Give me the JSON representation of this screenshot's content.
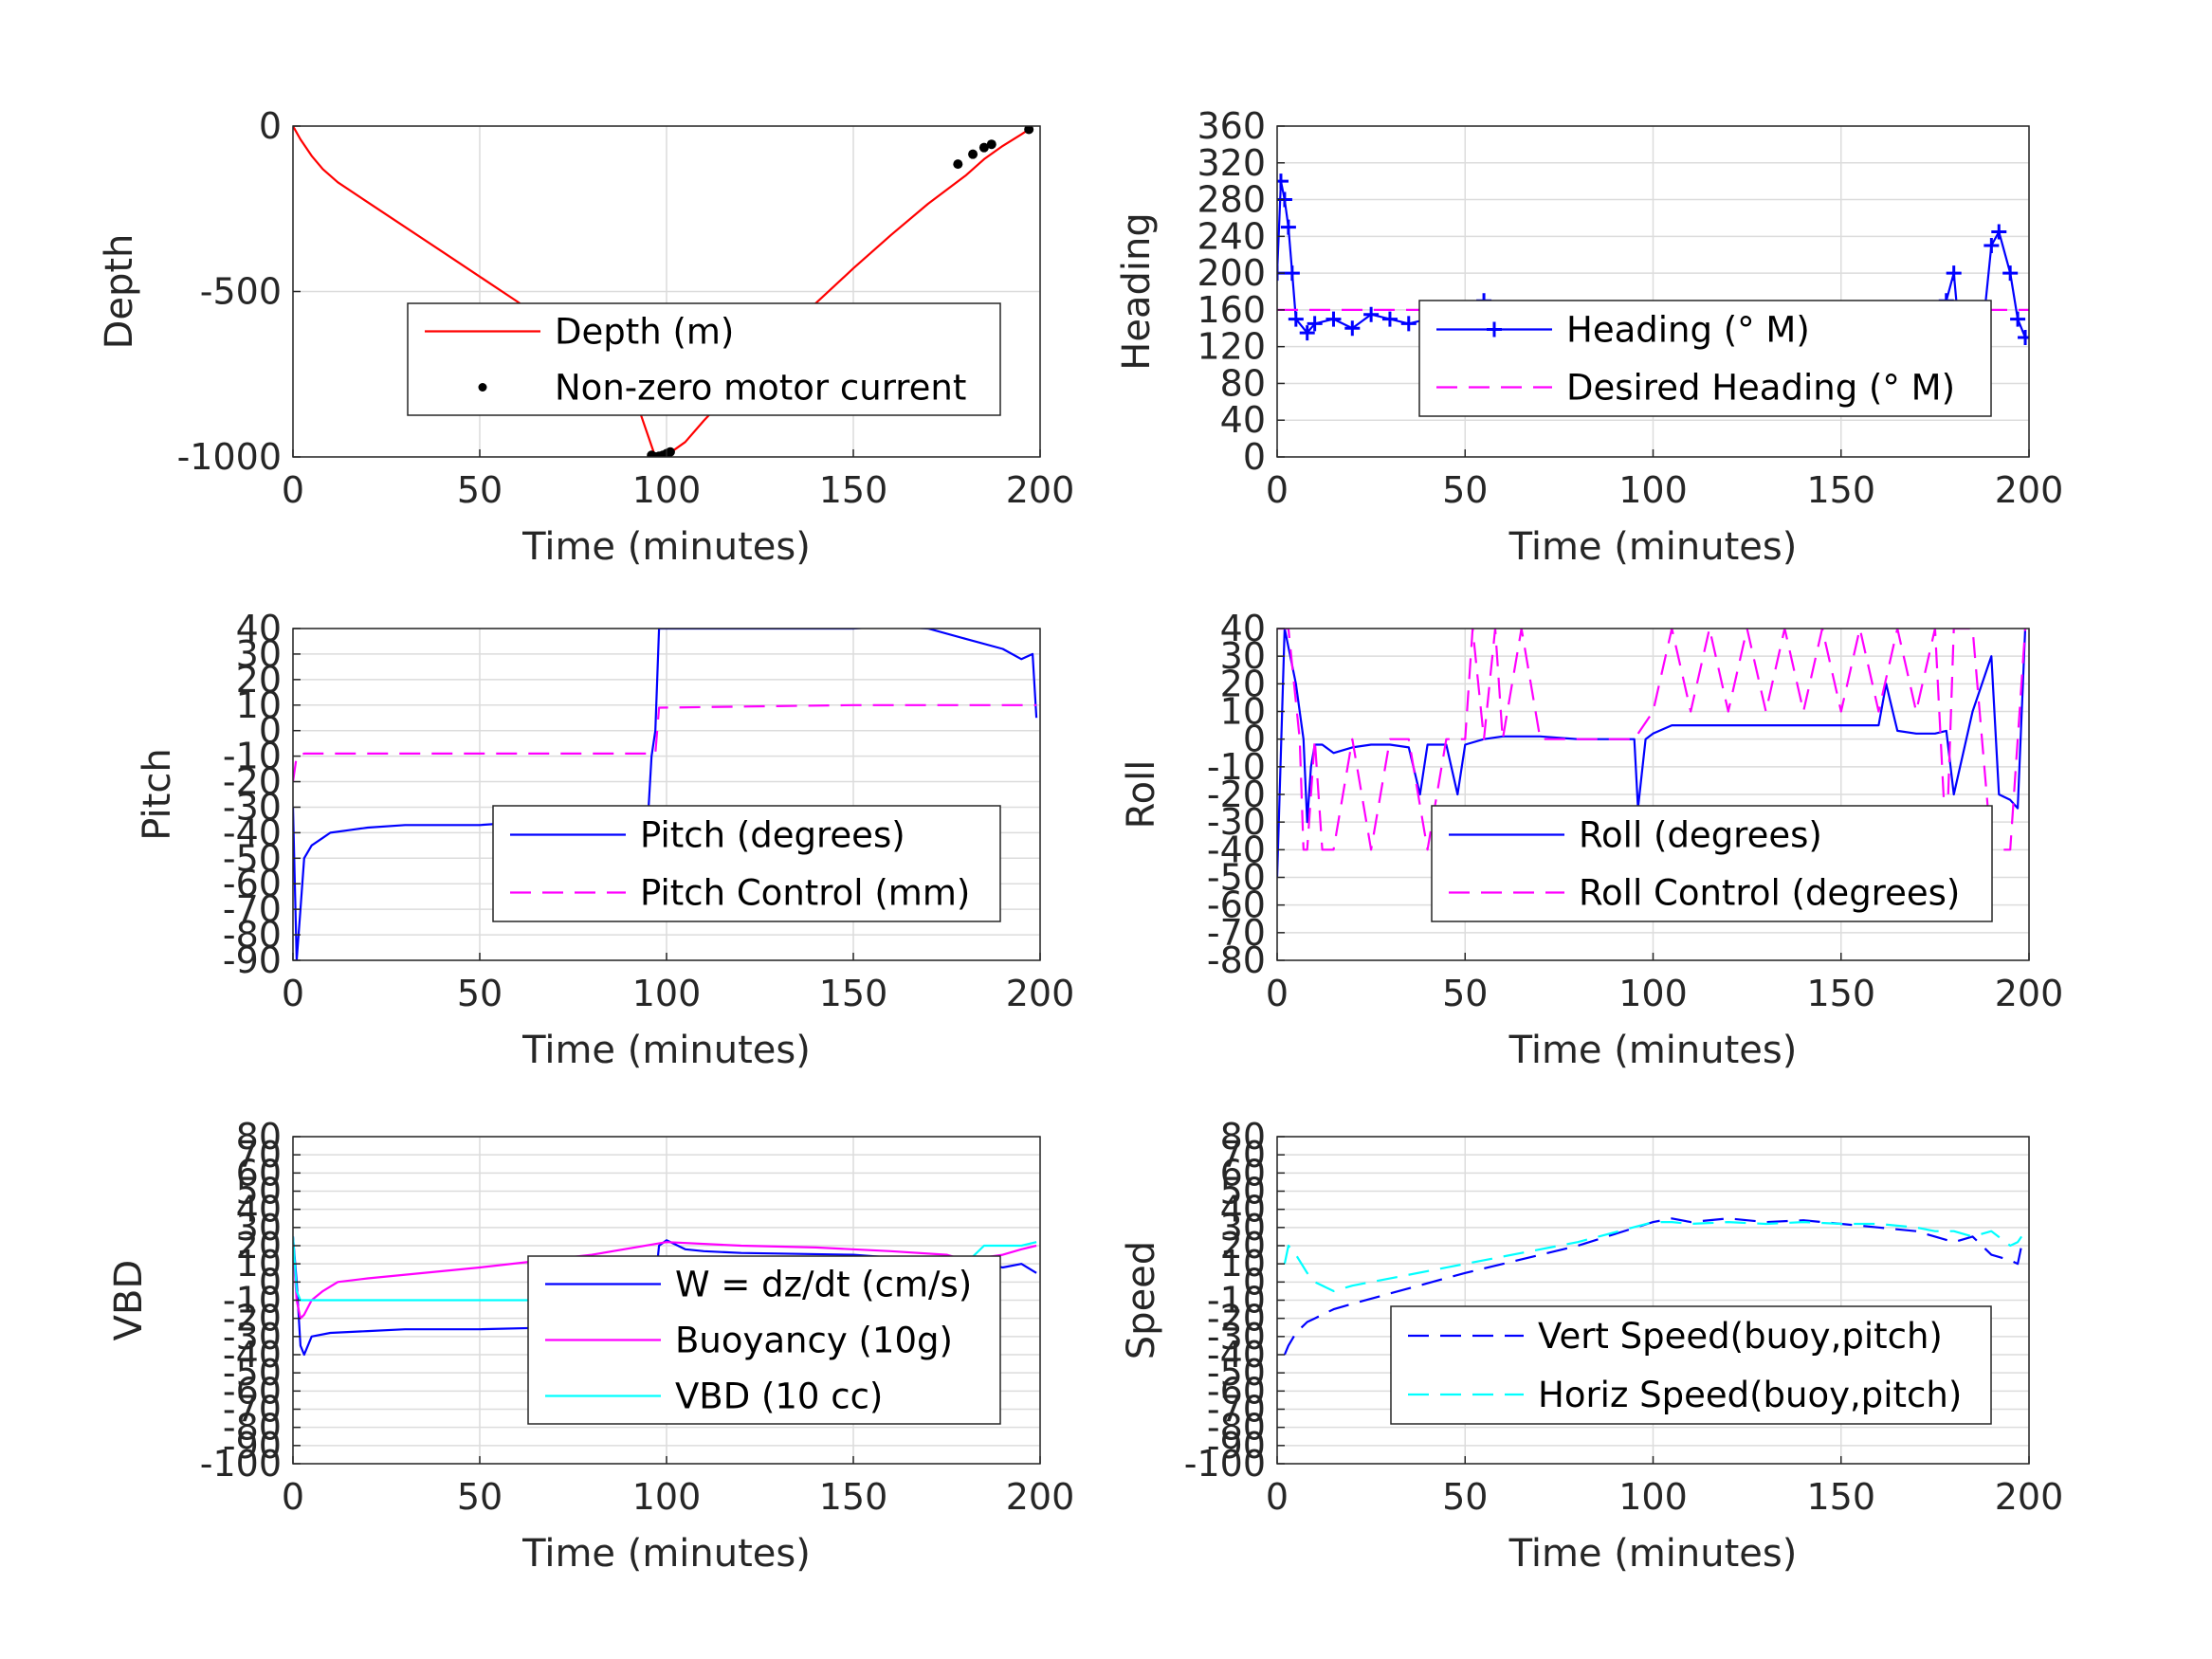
{
  "colors": {
    "red": "#ff0000",
    "blue": "#0000ff",
    "magenta": "#ff00ff",
    "cyan": "#00ffff",
    "black": "#000000"
  },
  "chart_data": [
    {
      "id": "depth",
      "type": "line",
      "xlabel": "Time (minutes)",
      "ylabel": "Depth",
      "xlim": [
        0,
        200
      ],
      "ylim": [
        -1000,
        0
      ],
      "xticks": [
        0,
        50,
        100,
        150,
        200
      ],
      "yticks": [
        -1000,
        -500,
        0
      ],
      "grid": true,
      "legend_position": "center-right",
      "series": [
        {
          "name": "Depth (m)",
          "style": "line",
          "color": "#ff0000",
          "x": [
            0,
            2,
            5,
            8,
            12,
            20,
            30,
            40,
            50,
            60,
            70,
            80,
            90,
            97,
            100,
            105,
            110,
            120,
            130,
            140,
            150,
            160,
            170,
            180,
            185,
            190,
            195,
            197
          ],
          "y": [
            0,
            -40,
            -90,
            -130,
            -170,
            -230,
            -305,
            -380,
            -455,
            -530,
            -610,
            -690,
            -770,
            -1000,
            -995,
            -955,
            -890,
            -770,
            -650,
            -535,
            -430,
            -330,
            -235,
            -150,
            -100,
            -60,
            -25,
            -10
          ]
        },
        {
          "name": "Non-zero motor current",
          "style": "dots",
          "color": "#000000",
          "x": [
            96,
            97,
            98,
            99,
            100,
            101,
            178,
            182,
            185,
            187,
            197
          ],
          "y": [
            -995,
            -1000,
            -998,
            -995,
            -990,
            -985,
            -115,
            -85,
            -65,
            -55,
            -10
          ]
        }
      ]
    },
    {
      "id": "heading",
      "type": "line",
      "xlabel": "Time (minutes)",
      "ylabel": "Heading",
      "xlim": [
        0,
        200
      ],
      "ylim": [
        0,
        360
      ],
      "xticks": [
        0,
        50,
        100,
        150,
        200
      ],
      "yticks": [
        0,
        40,
        80,
        120,
        160,
        200,
        240,
        280,
        320,
        360
      ],
      "grid": true,
      "legend_position": "center",
      "series": [
        {
          "name": "Heading (° M)",
          "style": "plus-line",
          "color": "#0000ff",
          "x": [
            0,
            1,
            2,
            3,
            4,
            5,
            8,
            10,
            15,
            20,
            25,
            30,
            35,
            40,
            45,
            50,
            55,
            60,
            65,
            70,
            75,
            80,
            85,
            90,
            95,
            100,
            105,
            110,
            115,
            120,
            125,
            130,
            135,
            140,
            145,
            150,
            155,
            160,
            165,
            170,
            175,
            178,
            180,
            182,
            185,
            188,
            190,
            192,
            195,
            197,
            199
          ],
          "y": [
            200,
            300,
            280,
            250,
            200,
            150,
            135,
            145,
            150,
            140,
            155,
            150,
            145,
            150,
            155,
            160,
            170,
            160,
            150,
            155,
            150,
            145,
            155,
            150,
            145,
            150,
            125,
            115,
            150,
            120,
            140,
            115,
            145,
            150,
            140,
            155,
            150,
            155,
            150,
            145,
            150,
            170,
            200,
            110,
            90,
            150,
            230,
            245,
            200,
            150,
            130
          ]
        },
        {
          "name": "Desired Heading (° M)",
          "style": "dashed",
          "color": "#ff00ff",
          "x": [
            0,
            200
          ],
          "y": [
            160,
            160
          ]
        }
      ]
    },
    {
      "id": "pitch",
      "type": "line",
      "xlabel": "Time (minutes)",
      "ylabel": "Pitch",
      "xlim": [
        0,
        200
      ],
      "ylim": [
        -90,
        40
      ],
      "xticks": [
        0,
        50,
        100,
        150,
        200
      ],
      "yticks": [
        -90,
        -80,
        -70,
        -60,
        -50,
        -40,
        -30,
        -20,
        -10,
        0,
        10,
        20,
        30,
        40
      ],
      "grid": true,
      "legend_position": "center-right",
      "series": [
        {
          "name": "Pitch (degrees)",
          "style": "line",
          "color": "#0000ff",
          "x": [
            0,
            1,
            2,
            3,
            5,
            8,
            10,
            15,
            20,
            30,
            40,
            50,
            60,
            70,
            80,
            90,
            95,
            96,
            97,
            98,
            99,
            100,
            150,
            160,
            170,
            180,
            190,
            195,
            198,
            199
          ],
          "y": [
            -30,
            -90,
            -70,
            -50,
            -45,
            -42,
            -40,
            -39,
            -38,
            -37,
            -37,
            -37,
            -36,
            -36,
            -35,
            -35,
            -35,
            -10,
            0,
            40,
            40,
            40,
            40,
            41,
            40,
            36,
            32,
            28,
            30,
            5
          ]
        },
        {
          "name": "Pitch Control (mm)",
          "style": "dashed",
          "color": "#ff00ff",
          "x": [
            0,
            1,
            3,
            50,
            95,
            97,
            98,
            150,
            199
          ],
          "y": [
            -20,
            -10,
            -9,
            -9,
            -9,
            -9,
            9,
            10,
            10
          ]
        }
      ]
    },
    {
      "id": "roll",
      "type": "line",
      "xlabel": "Time (minutes)",
      "ylabel": "Roll",
      "xlim": [
        0,
        200
      ],
      "ylim": [
        -80,
        40
      ],
      "xticks": [
        0,
        50,
        100,
        150,
        200
      ],
      "yticks": [
        -80,
        -70,
        -60,
        -50,
        -40,
        -30,
        -20,
        -10,
        0,
        10,
        20,
        30,
        40
      ],
      "grid": true,
      "legend_position": "center-right",
      "series": [
        {
          "name": "Roll (degrees)",
          "style": "line",
          "color": "#0000ff",
          "x": [
            0,
            2,
            5,
            7,
            8,
            9,
            10,
            12,
            15,
            20,
            25,
            30,
            35,
            38,
            40,
            45,
            48,
            50,
            55,
            60,
            70,
            80,
            90,
            95,
            96,
            98,
            100,
            105,
            110,
            120,
            130,
            140,
            150,
            160,
            162,
            165,
            170,
            175,
            178,
            180,
            185,
            190,
            192,
            195,
            197,
            199
          ],
          "y": [
            -50,
            40,
            20,
            0,
            -30,
            -10,
            -2,
            -2,
            -5,
            -3,
            -2,
            -2,
            -3,
            -20,
            -2,
            -2,
            -20,
            -2,
            0,
            1,
            1,
            0,
            0,
            0,
            -25,
            0,
            2,
            5,
            5,
            5,
            5,
            5,
            5,
            5,
            20,
            3,
            2,
            2,
            3,
            -20,
            10,
            30,
            -20,
            -22,
            -25,
            40
          ]
        },
        {
          "name": "Roll Control (degrees)",
          "style": "dashed",
          "color": "#ff00ff",
          "x": [
            0,
            3,
            6,
            7,
            8,
            10,
            12,
            15,
            20,
            25,
            30,
            35,
            40,
            45,
            50,
            52,
            55,
            58,
            60,
            65,
            70,
            75,
            80,
            85,
            90,
            95,
            100,
            105,
            110,
            115,
            120,
            125,
            130,
            135,
            140,
            145,
            150,
            155,
            160,
            165,
            170,
            175,
            178,
            180,
            185,
            190,
            195,
            199
          ],
          "y": [
            40,
            40,
            0,
            -40,
            -40,
            0,
            -40,
            -40,
            0,
            -40,
            0,
            0,
            -40,
            0,
            0,
            40,
            0,
            40,
            0,
            40,
            0,
            0,
            0,
            0,
            0,
            0,
            10,
            40,
            10,
            40,
            10,
            40,
            10,
            40,
            10,
            40,
            10,
            40,
            10,
            40,
            10,
            40,
            -40,
            40,
            40,
            -40,
            -40,
            40
          ]
        }
      ]
    },
    {
      "id": "vbd",
      "type": "line",
      "xlabel": "Time (minutes)",
      "ylabel": "VBD",
      "xlim": [
        0,
        200
      ],
      "ylim": [
        -100,
        80
      ],
      "xticks": [
        0,
        50,
        100,
        150,
        200
      ],
      "yticks": [
        -100,
        -90,
        -80,
        -70,
        -60,
        -50,
        -40,
        -30,
        -20,
        -10,
        0,
        10,
        20,
        30,
        40,
        50,
        60,
        70,
        80
      ],
      "grid": true,
      "legend_position": "center-right",
      "series": [
        {
          "name": "W = dz/dt (cm/s)",
          "style": "line",
          "color": "#0000ff",
          "x": [
            0,
            1,
            2,
            3,
            5,
            10,
            20,
            30,
            50,
            70,
            85,
            90,
            95,
            96,
            97,
            98,
            100,
            105,
            110,
            120,
            150,
            170,
            175,
            180,
            190,
            195,
            199
          ],
          "y": [
            25,
            0,
            -35,
            -40,
            -30,
            -28,
            -27,
            -26,
            -26,
            -25,
            -25,
            -30,
            -20,
            -25,
            0,
            20,
            23,
            18,
            17,
            16,
            15,
            12,
            10,
            12,
            8,
            10,
            5
          ]
        },
        {
          "name": "Buoyancy (10g)",
          "style": "line",
          "color": "#ff00ff",
          "x": [
            0,
            1,
            2,
            3,
            5,
            8,
            12,
            20,
            50,
            80,
            100,
            120,
            140,
            160,
            175,
            180,
            190,
            195,
            199
          ],
          "y": [
            20,
            -10,
            -20,
            -18,
            -10,
            -5,
            0,
            2,
            8,
            15,
            22,
            20,
            19,
            17,
            15,
            12,
            15,
            18,
            20
          ]
        },
        {
          "name": "VBD (10 cc)",
          "style": "line",
          "color": "#00ffff",
          "x": [
            0,
            1,
            2,
            3,
            5,
            50,
            96,
            97,
            100,
            150,
            180,
            185,
            190,
            195,
            199
          ],
          "y": [
            25,
            -5,
            -10,
            -10,
            -10,
            -10,
            -10,
            10,
            10,
            10,
            10,
            20,
            20,
            20,
            22
          ]
        }
      ]
    },
    {
      "id": "speed",
      "type": "line",
      "xlabel": "Time (minutes)",
      "ylabel": "Speed",
      "xlim": [
        0,
        200
      ],
      "ylim": [
        -100,
        80
      ],
      "xticks": [
        0,
        50,
        100,
        150,
        200
      ],
      "yticks": [
        -100,
        -90,
        -80,
        -70,
        -60,
        -50,
        -40,
        -30,
        -20,
        -10,
        0,
        10,
        20,
        30,
        40,
        50,
        60,
        70,
        80
      ],
      "grid": true,
      "legend_position": "lower-right",
      "series": [
        {
          "name": "Vert Speed(buoy,pitch)",
          "style": "dashed",
          "color": "#0000ff",
          "x": [
            2,
            3,
            5,
            8,
            10,
            15,
            20,
            50,
            80,
            100,
            105,
            110,
            120,
            130,
            140,
            150,
            160,
            170,
            175,
            180,
            185,
            190,
            195,
            197,
            198
          ],
          "y": [
            -40,
            -35,
            -28,
            -22,
            -20,
            -15,
            -12,
            5,
            20,
            33,
            35,
            33,
            35,
            33,
            34,
            32,
            30,
            28,
            25,
            22,
            25,
            15,
            12,
            10,
            20
          ]
        },
        {
          "name": "Horiz Speed(buoy,pitch)",
          "style": "dashed",
          "color": "#00ffff",
          "x": [
            2,
            3,
            5,
            8,
            10,
            15,
            20,
            50,
            80,
            100,
            105,
            110,
            120,
            130,
            140,
            150,
            160,
            170,
            175,
            180,
            185,
            190,
            195,
            197,
            198
          ],
          "y": [
            10,
            20,
            15,
            5,
            0,
            -5,
            -2,
            10,
            22,
            33,
            33,
            32,
            33,
            32,
            33,
            32,
            32,
            30,
            28,
            28,
            25,
            28,
            20,
            22,
            25
          ]
        }
      ]
    }
  ]
}
